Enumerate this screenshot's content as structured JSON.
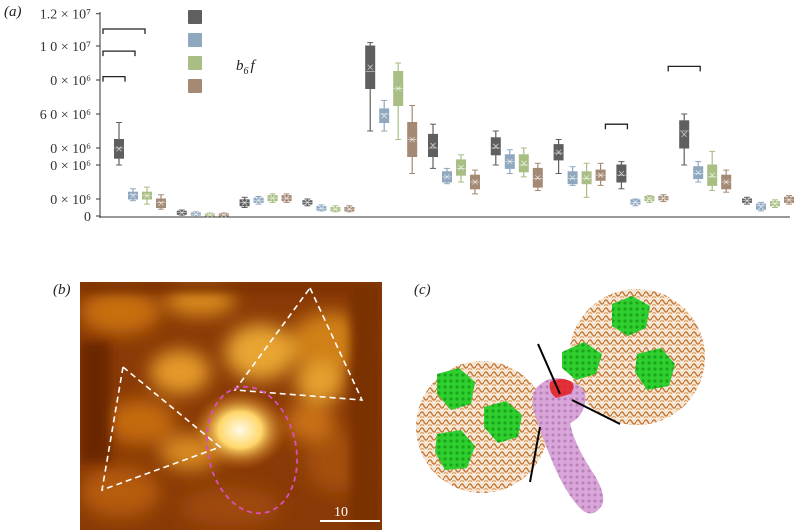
{
  "panel_labels": {
    "a": "(a)",
    "b": "(b)",
    "c": "(c)"
  },
  "legend": {
    "label": "b6f",
    "label_main": "b",
    "label_sub": "6",
    "label_tail": "f"
  },
  "scale_bar": {
    "label": "10"
  },
  "colors": {
    "s1": "#5f5f5f",
    "s2": "#8fa8bf",
    "s3": "#a9be84",
    "s4": "#a48a74"
  },
  "chart_data": {
    "type": "box",
    "ylim": [
      0,
      12000000
    ],
    "ytick_labels": [
      "0",
      "0 × 10⁶",
      "0 × 10⁶",
      "0 × 10⁶",
      "6 0 × 10⁶",
      "0 × 10⁶",
      "1 0 × 10⁷",
      "1.2 × 10⁷"
    ],
    "yticks": [
      0,
      1000000,
      3000000,
      4000000,
      6000000,
      8000000,
      10000000,
      11900000
    ],
    "groups": [
      {
        "series": [
          {
            "min": 3000000,
            "q1": 3400000,
            "median": 4000000,
            "q3": 4500000,
            "max": 5500000
          },
          {
            "min": 900000,
            "q1": 1000000,
            "median": 1250000,
            "q3": 1400000,
            "max": 1600000
          },
          {
            "min": 700000,
            "q1": 1000000,
            "median": 1200000,
            "q3": 1400000,
            "max": 1700000
          },
          {
            "min": 400000,
            "q1": 500000,
            "median": 800000,
            "q3": 1000000,
            "max": 1250000
          }
        ]
      },
      {
        "series": [
          {
            "min": 50000,
            "q1": 100000,
            "median": 200000,
            "q3": 280000,
            "max": 350000
          },
          {
            "min": 20000,
            "q1": 50000,
            "median": 100000,
            "q3": 180000,
            "max": 250000
          },
          {
            "min": 10000,
            "q1": 30000,
            "median": 70000,
            "q3": 120000,
            "max": 180000
          },
          {
            "min": 10000,
            "q1": 30000,
            "median": 70000,
            "q3": 120000,
            "max": 180000
          }
        ]
      },
      {
        "series": [
          {
            "min": 500000,
            "q1": 600000,
            "median": 800000,
            "q3": 950000,
            "max": 1100000
          },
          {
            "min": 700000,
            "q1": 800000,
            "median": 900000,
            "q3": 1050000,
            "max": 1150000
          },
          {
            "min": 800000,
            "q1": 900000,
            "median": 1050000,
            "q3": 1200000,
            "max": 1300000
          },
          {
            "min": 800000,
            "q1": 900000,
            "median": 1050000,
            "q3": 1200000,
            "max": 1300000
          }
        ]
      },
      {
        "series": [
          {
            "min": 600000,
            "q1": 700000,
            "median": 800000,
            "q3": 900000,
            "max": 1000000
          },
          {
            "min": 300000,
            "q1": 350000,
            "median": 450000,
            "q3": 550000,
            "max": 650000
          },
          {
            "min": 250000,
            "q1": 300000,
            "median": 400000,
            "q3": 500000,
            "max": 600000
          },
          {
            "min": 250000,
            "q1": 300000,
            "median": 400000,
            "q3": 500000,
            "max": 600000
          }
        ]
      },
      {
        "series": [
          {
            "min": 5000000,
            "q1": 7500000,
            "median": 8500000,
            "q3": 10000000,
            "max": 10200000
          },
          {
            "min": 5000000,
            "q1": 5500000,
            "median": 6000000,
            "q3": 6300000,
            "max": 6800000
          },
          {
            "min": 4500000,
            "q1": 6500000,
            "median": 7500000,
            "q3": 8500000,
            "max": 9000000
          },
          {
            "min": 2500000,
            "q1": 3500000,
            "median": 4500000,
            "q3": 5500000,
            "max": 6500000
          }
        ]
      },
      {
        "series": [
          {
            "min": 2800000,
            "q1": 3500000,
            "median": 4000000,
            "q3": 4800000,
            "max": 5400000
          },
          {
            "min": 1900000,
            "q1": 2000000,
            "median": 2300000,
            "q3": 2600000,
            "max": 2800000
          },
          {
            "min": 2000000,
            "q1": 2400000,
            "median": 2800000,
            "q3": 3300000,
            "max": 3600000
          },
          {
            "min": 1300000,
            "q1": 1600000,
            "median": 2000000,
            "q3": 2400000,
            "max": 2700000
          }
        ]
      },
      {
        "series": [
          {
            "min": 3000000,
            "q1": 3600000,
            "median": 4000000,
            "q3": 4600000,
            "max": 5000000
          },
          {
            "min": 2500000,
            "q1": 2800000,
            "median": 3200000,
            "q3": 3600000,
            "max": 3900000
          },
          {
            "min": 2300000,
            "q1": 2600000,
            "median": 3000000,
            "q3": 3600000,
            "max": 4000000
          },
          {
            "min": 1500000,
            "q1": 1700000,
            "median": 2200000,
            "q3": 2800000,
            "max": 3100000
          }
        ]
      },
      {
        "series": [
          {
            "min": 2500000,
            "q1": 3300000,
            "median": 3700000,
            "q3": 4200000,
            "max": 4500000
          },
          {
            "min": 1800000,
            "q1": 1900000,
            "median": 2200000,
            "q3": 2600000,
            "max": 2900000
          },
          {
            "min": 1100000,
            "q1": 1900000,
            "median": 2200000,
            "q3": 2600000,
            "max": 3100000
          },
          {
            "min": 1800000,
            "q1": 2100000,
            "median": 2400000,
            "q3": 2700000,
            "max": 3100000
          }
        ]
      },
      {
        "series": [
          {
            "min": 1600000,
            "q1": 2000000,
            "median": 2400000,
            "q3": 3000000,
            "max": 3200000
          },
          {
            "min": 600000,
            "q1": 700000,
            "median": 800000,
            "q3": 950000,
            "max": 1000000
          },
          {
            "min": 800000,
            "q1": 900000,
            "median": 1000000,
            "q3": 1150000,
            "max": 1200000
          },
          {
            "min": 850000,
            "q1": 950000,
            "median": 1050000,
            "q3": 1150000,
            "max": 1250000
          }
        ]
      },
      {
        "series": [
          {
            "min": 3000000,
            "q1": 4000000,
            "median": 5000000,
            "q3": 5600000,
            "max": 6000000
          },
          {
            "min": 2000000,
            "q1": 2200000,
            "median": 2500000,
            "q3": 2900000,
            "max": 3200000
          },
          {
            "min": 1500000,
            "q1": 1800000,
            "median": 2300000,
            "q3": 3000000,
            "max": 3800000
          },
          {
            "min": 1400000,
            "q1": 1600000,
            "median": 2000000,
            "q3": 2400000,
            "max": 2700000
          }
        ]
      },
      {
        "series": [
          {
            "min": 700000,
            "q1": 800000,
            "median": 900000,
            "q3": 1000000,
            "max": 1100000
          },
          {
            "min": 300000,
            "q1": 400000,
            "median": 600000,
            "q3": 700000,
            "max": 800000
          },
          {
            "min": 500000,
            "q1": 600000,
            "median": 750000,
            "q3": 850000,
            "max": 950000
          },
          {
            "min": 700000,
            "q1": 800000,
            "median": 950000,
            "q3": 1100000,
            "max": 1200000
          }
        ]
      }
    ],
    "brackets": [
      {
        "group": 0,
        "y": 11000000,
        "width": "wide"
      },
      {
        "group": 0,
        "y": 9700000,
        "width": "mid"
      },
      {
        "group": 0,
        "y": 8200000,
        "width": "narrow"
      },
      {
        "group": 8,
        "y": 5400000,
        "width": "narrow"
      },
      {
        "group": 9,
        "y": 8800000,
        "width": "mid"
      }
    ]
  }
}
